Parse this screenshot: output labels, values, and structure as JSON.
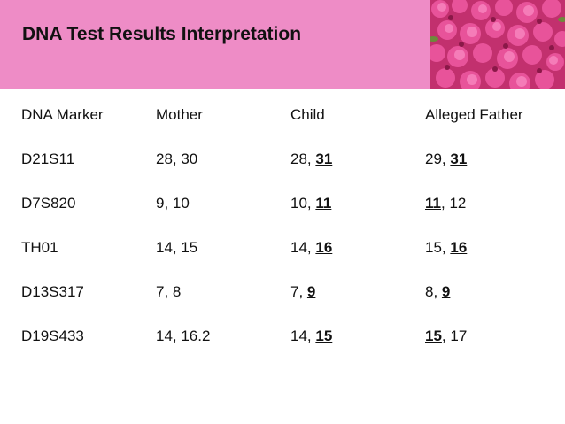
{
  "slide": {
    "title": "DNA Test Results Interpretation",
    "accent_color": "#ee8cc6",
    "photo_icon": "pink-hydrangea-flowers"
  },
  "table": {
    "headers": [
      "DNA Marker",
      "Mother",
      "Child",
      "Alleged Father"
    ],
    "rows": [
      {
        "marker": "D21S11",
        "mother": "28, 30",
        "child": {
          "a": "28",
          "b": "31",
          "b_hl": true
        },
        "father": {
          "a": "29",
          "a_hl": false,
          "b": "31",
          "b_hl": true
        }
      },
      {
        "marker": "D7S820",
        "mother": "9, 10",
        "child": {
          "a": "10",
          "b": "11",
          "b_hl": true
        },
        "father": {
          "a": "11",
          "a_hl": true,
          "b": "12",
          "b_hl": false
        }
      },
      {
        "marker": "TH01",
        "mother": "14, 15",
        "child": {
          "a": "14",
          "b": "16",
          "b_hl": true
        },
        "father": {
          "a": "15",
          "a_hl": false,
          "b": "16",
          "b_hl": true
        }
      },
      {
        "marker": "D13S317",
        "mother": "7, 8",
        "child": {
          "a": "7",
          "b": "9",
          "b_hl": true
        },
        "father": {
          "a": "8",
          "a_hl": false,
          "b": "9",
          "b_hl": true
        }
      },
      {
        "marker": "D19S433",
        "mother": "14, 16.2",
        "child": {
          "a": "14",
          "b": "15",
          "b_hl": true
        },
        "father": {
          "a": "15",
          "a_hl": true,
          "b": "17",
          "b_hl": false
        }
      }
    ]
  }
}
